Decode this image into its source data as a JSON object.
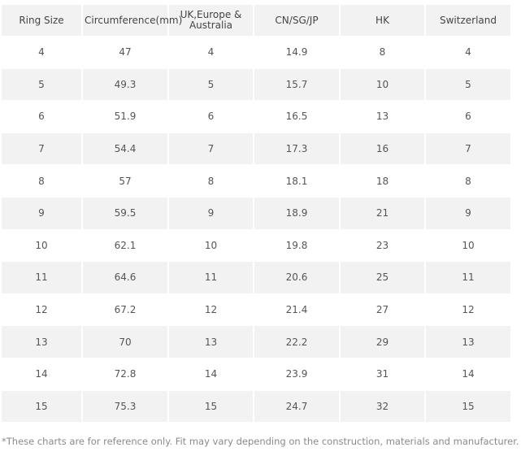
{
  "table": {
    "headers": [
      "Ring Size",
      "Circumference(mm)",
      "UK,Europe & Australia",
      "CN/SG/JP",
      "HK",
      "Switzerland"
    ],
    "rows": [
      [
        "4",
        "47",
        "4",
        "14.9",
        "8",
        "4"
      ],
      [
        "5",
        "49.3",
        "5",
        "15.7",
        "10",
        "5"
      ],
      [
        "6",
        "51.9",
        "6",
        "16.5",
        "13",
        "6"
      ],
      [
        "7",
        "54.4",
        "7",
        "17.3",
        "16",
        "7"
      ],
      [
        "8",
        "57",
        "8",
        "18.1",
        "18",
        "8"
      ],
      [
        "9",
        "59.5",
        "9",
        "18.9",
        "21",
        "9"
      ],
      [
        "10",
        "62.1",
        "10",
        "19.8",
        "23",
        "10"
      ],
      [
        "11",
        "64.6",
        "11",
        "20.6",
        "25",
        "11"
      ],
      [
        "12",
        "67.2",
        "12",
        "21.4",
        "27",
        "12"
      ],
      [
        "13",
        "70",
        "13",
        "22.2",
        "29",
        "13"
      ],
      [
        "14",
        "72.8",
        "14",
        "23.9",
        "31",
        "14"
      ],
      [
        "15",
        "75.3",
        "15",
        "24.7",
        "32",
        "15"
      ]
    ]
  },
  "footnote": "*These charts are for reference only. Fit may vary depending on the construction, materials and manufacturer.",
  "colors": {
    "stripe": "#f2f2f2",
    "text": "#444444",
    "footnote": "#8a8a8a"
  }
}
